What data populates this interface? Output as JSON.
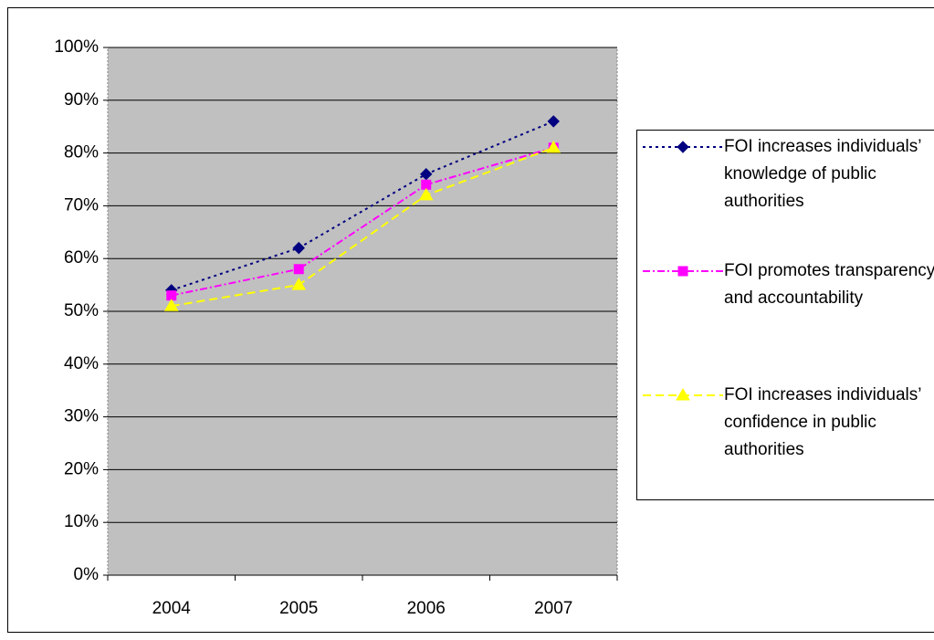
{
  "chart_data": {
    "type": "line",
    "categories": [
      "2004",
      "2005",
      "2006",
      "2007"
    ],
    "series": [
      {
        "name": "FOI increases individuals’ knowledge of public authorities",
        "color": "#000080",
        "marker": "diamond",
        "dash": "3,4",
        "values": [
          54,
          62,
          76,
          86
        ]
      },
      {
        "name": "FOI promotes transparency and accountability",
        "color": "#FF00FF",
        "marker": "square",
        "dash": "8,3,2,3",
        "values": [
          53,
          58,
          74,
          81
        ]
      },
      {
        "name": "FOI increases individuals’ confidence in public authorities",
        "color": "#FFFF00",
        "marker": "triangle",
        "dash": "9,5",
        "values": [
          51,
          55,
          72,
          81
        ]
      }
    ],
    "ylim": [
      0,
      100
    ],
    "yticks": [
      {
        "value": 0,
        "label": "0%"
      },
      {
        "value": 10,
        "label": "10%"
      },
      {
        "value": 20,
        "label": "20%"
      },
      {
        "value": 30,
        "label": "30%"
      },
      {
        "value": 40,
        "label": "40%"
      },
      {
        "value": 50,
        "label": "50%"
      },
      {
        "value": 60,
        "label": "60%"
      },
      {
        "value": 70,
        "label": "70%"
      },
      {
        "value": 80,
        "label": "80%"
      },
      {
        "value": 90,
        "label": "90%"
      },
      {
        "value": 100,
        "label": "100%"
      }
    ],
    "grid": true,
    "legend": "right",
    "plot_background": "#C0C0C0"
  }
}
